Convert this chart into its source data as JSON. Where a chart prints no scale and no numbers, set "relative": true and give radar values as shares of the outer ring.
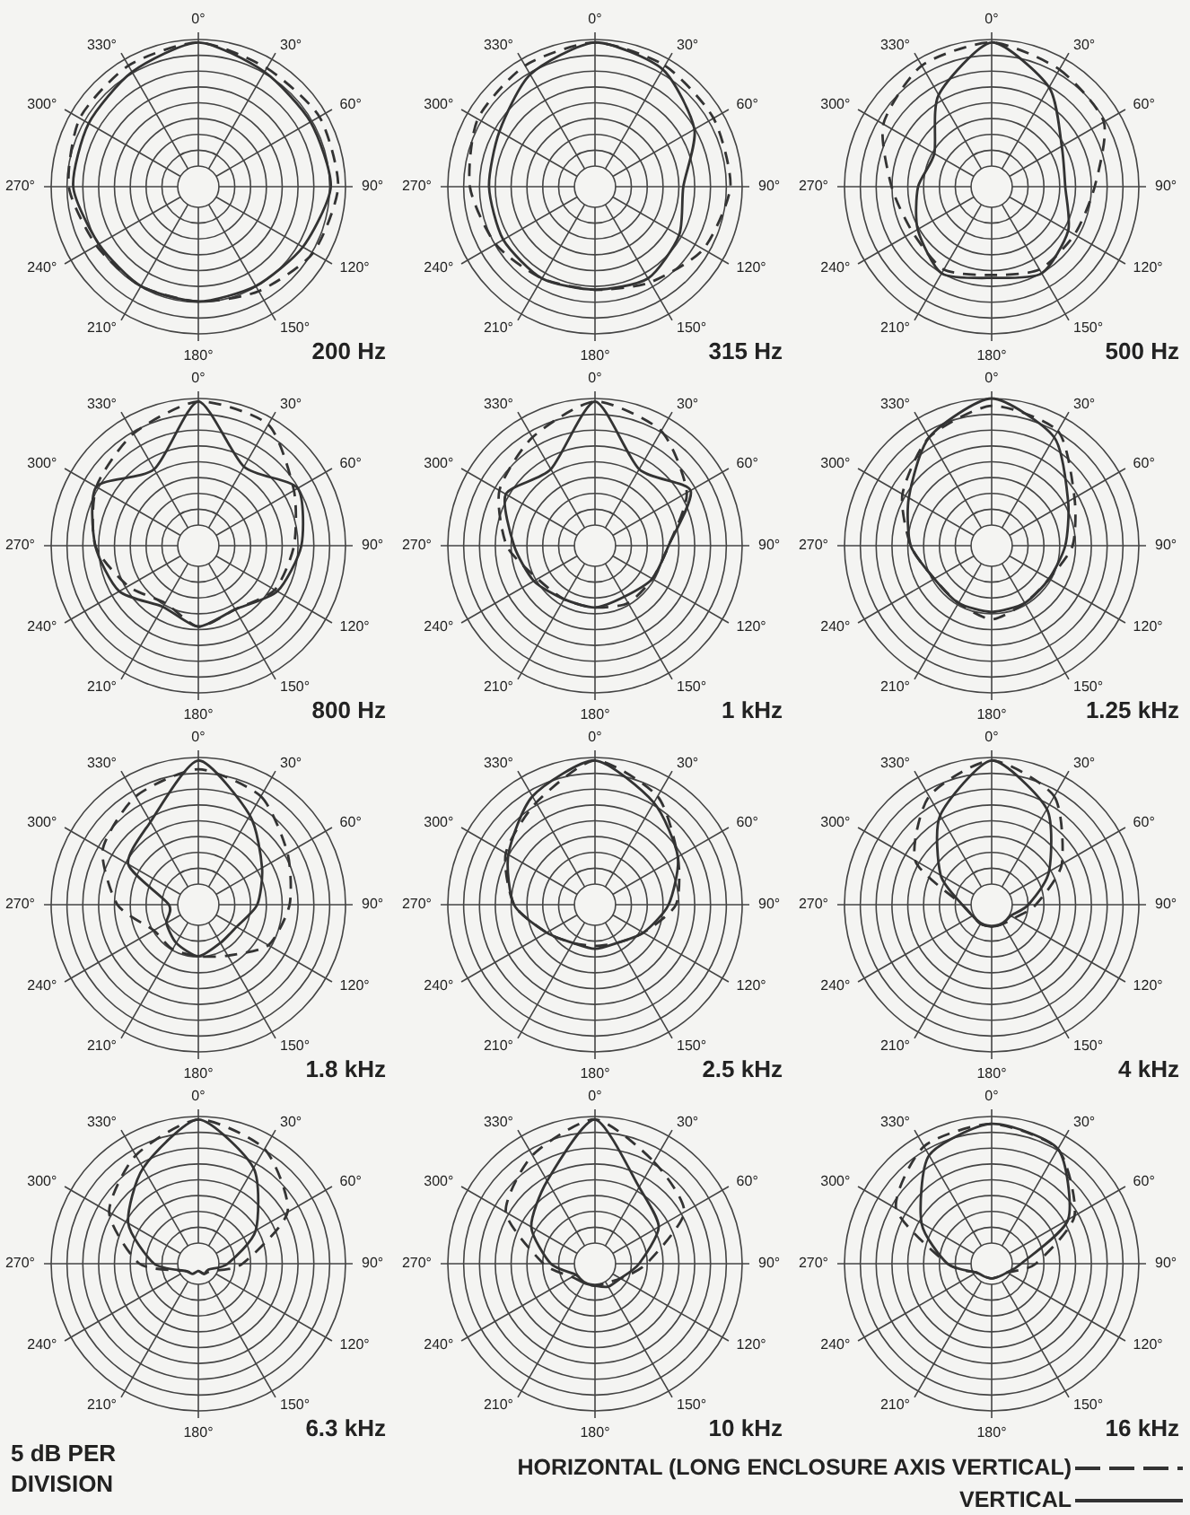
{
  "chart_data": [
    {
      "type": "radar",
      "title": "200 Hz",
      "relative": true,
      "grid": true,
      "categories": [
        "0°",
        "30°",
        "60°",
        "90°",
        "120°",
        "150°",
        "180°",
        "210°",
        "240°",
        "270°",
        "300°",
        "330°"
      ],
      "series": [
        {
          "color": "#333333",
          "line_style": "dashed",
          "values": [
            0.98,
            0.93,
            0.95,
            0.95,
            0.9,
            0.82,
            0.78,
            0.78,
            0.8,
            0.88,
            0.93,
            0.95
          ]
        },
        {
          "color": "#333333",
          "line_style": "solid",
          "values": [
            0.98,
            0.9,
            0.88,
            0.9,
            0.82,
            0.78,
            0.78,
            0.78,
            0.78,
            0.85,
            0.86,
            0.9
          ]
        }
      ]
    },
    {
      "type": "radar",
      "title": "315 Hz",
      "relative": true,
      "grid": true,
      "categories": [
        "0°",
        "30°",
        "60°",
        "90°",
        "120°",
        "150°",
        "180°",
        "210°",
        "240°",
        "270°",
        "300°",
        "330°"
      ],
      "series": [
        {
          "color": "#333333",
          "line_style": "dashed",
          "values": [
            0.98,
            0.95,
            0.93,
            0.92,
            0.85,
            0.75,
            0.7,
            0.72,
            0.78,
            0.85,
            0.92,
            0.95
          ]
        },
        {
          "color": "#333333",
          "line_style": "solid",
          "values": [
            0.98,
            0.92,
            0.78,
            0.6,
            0.66,
            0.72,
            0.7,
            0.72,
            0.72,
            0.72,
            0.75,
            0.88
          ]
        }
      ]
    },
    {
      "type": "radar",
      "title": "500 Hz",
      "relative": true,
      "grid": true,
      "categories": [
        "0°",
        "30°",
        "60°",
        "90°",
        "120°",
        "150°",
        "180°",
        "210°",
        "240°",
        "270°",
        "300°",
        "330°"
      ],
      "series": [
        {
          "color": "#333333",
          "line_style": "dashed",
          "values": [
            0.98,
            0.92,
            0.88,
            0.7,
            0.65,
            0.65,
            0.6,
            0.65,
            0.62,
            0.68,
            0.85,
            0.95
          ]
        },
        {
          "color": "#333333",
          "line_style": "solid",
          "values": [
            0.98,
            0.78,
            0.55,
            0.5,
            0.6,
            0.68,
            0.62,
            0.68,
            0.58,
            0.5,
            0.45,
            0.72
          ]
        }
      ]
    },
    {
      "type": "radar",
      "title": "800 Hz",
      "relative": true,
      "grid": true,
      "categories": [
        "0°",
        "30°",
        "60°",
        "90°",
        "120°",
        "150°",
        "180°",
        "210°",
        "240°",
        "270°",
        "300°",
        "330°"
      ],
      "series": [
        {
          "color": "#333333",
          "line_style": "dashed",
          "values": [
            0.98,
            0.95,
            0.75,
            0.65,
            0.6,
            0.5,
            0.55,
            0.45,
            0.55,
            0.7,
            0.8,
            0.88
          ]
        },
        {
          "color": "#333333",
          "line_style": "solid",
          "values": [
            0.98,
            0.62,
            0.78,
            0.7,
            0.62,
            0.5,
            0.55,
            0.48,
            0.62,
            0.7,
            0.8,
            0.6
          ]
        }
      ]
    },
    {
      "type": "radar",
      "title": "1 kHz",
      "relative": true,
      "grid": true,
      "categories": [
        "0°",
        "30°",
        "60°",
        "90°",
        "120°",
        "150°",
        "180°",
        "210°",
        "240°",
        "270°",
        "300°",
        "330°"
      ],
      "series": [
        {
          "color": "#333333",
          "line_style": "dashed",
          "values": [
            0.98,
            0.9,
            0.72,
            0.5,
            0.45,
            0.45,
            0.42,
            0.42,
            0.45,
            0.6,
            0.75,
            0.85
          ]
        },
        {
          "color": "#333333",
          "line_style": "solid",
          "values": [
            0.98,
            0.6,
            0.75,
            0.5,
            0.45,
            0.4,
            0.42,
            0.42,
            0.48,
            0.55,
            0.7,
            0.6
          ]
        }
      ]
    },
    {
      "type": "radar",
      "title": "1.25 kHz",
      "relative": true,
      "grid": true,
      "categories": [
        "0°",
        "30°",
        "60°",
        "90°",
        "120°",
        "150°",
        "180°",
        "210°",
        "240°",
        "270°",
        "300°",
        "330°"
      ],
      "series": [
        {
          "color": "#333333",
          "line_style": "dashed",
          "values": [
            0.95,
            0.9,
            0.65,
            0.55,
            0.45,
            0.45,
            0.5,
            0.45,
            0.45,
            0.55,
            0.7,
            0.85
          ]
        },
        {
          "color": "#333333",
          "line_style": "solid",
          "values": [
            1,
            0.85,
            0.6,
            0.5,
            0.45,
            0.45,
            0.45,
            0.45,
            0.45,
            0.55,
            0.65,
            0.85
          ]
        }
      ]
    },
    {
      "type": "radar",
      "title": "1.8 kHz",
      "relative": true,
      "grid": true,
      "categories": [
        "0°",
        "30°",
        "60°",
        "90°",
        "120°",
        "150°",
        "180°",
        "210°",
        "240°",
        "270°",
        "300°",
        "330°"
      ],
      "series": [
        {
          "color": "#333333",
          "line_style": "dashed",
          "values": [
            0.92,
            0.85,
            0.7,
            0.62,
            0.55,
            0.4,
            0.35,
            0.35,
            0.35,
            0.55,
            0.75,
            0.85
          ]
        },
        {
          "color": "#333333",
          "line_style": "solid",
          "values": [
            0.98,
            0.7,
            0.5,
            0.4,
            0.3,
            0.3,
            0.35,
            0.3,
            0.25,
            0.2,
            0.55,
            0.65
          ]
        }
      ]
    },
    {
      "type": "radar",
      "title": "2.5 kHz",
      "relative": true,
      "grid": true,
      "categories": [
        "0°",
        "30°",
        "60°",
        "90°",
        "120°",
        "150°",
        "180°",
        "210°",
        "240°",
        "270°",
        "300°",
        "330°"
      ],
      "series": [
        {
          "color": "#333333",
          "line_style": "dashed",
          "values": [
            0.98,
            0.85,
            0.65,
            0.55,
            0.38,
            0.3,
            0.28,
            0.3,
            0.38,
            0.55,
            0.7,
            0.8
          ]
        },
        {
          "color": "#333333",
          "line_style": "solid",
          "values": [
            0.98,
            0.8,
            0.65,
            0.5,
            0.38,
            0.3,
            0.3,
            0.3,
            0.38,
            0.55,
            0.68,
            0.85
          ]
        }
      ]
    },
    {
      "type": "radar",
      "title": "4 kHz",
      "relative": true,
      "grid": true,
      "categories": [
        "0°",
        "30°",
        "60°",
        "90°",
        "120°",
        "150°",
        "180°",
        "210°",
        "240°",
        "270°",
        "300°",
        "330°"
      ],
      "series": [
        {
          "color": "#333333",
          "line_style": "dashed",
          "values": [
            0.98,
            0.85,
            0.55,
            0.3,
            0.18,
            0.15,
            0.15,
            0.15,
            0.15,
            0.2,
            0.6,
            0.85
          ]
        },
        {
          "color": "#333333",
          "line_style": "solid",
          "values": [
            0.98,
            0.75,
            0.45,
            0.25,
            0.15,
            0.15,
            0.15,
            0.15,
            0.15,
            0.2,
            0.4,
            0.7
          ]
        }
      ]
    },
    {
      "type": "radar",
      "title": "6.3 kHz",
      "relative": true,
      "grid": true,
      "annotations": [
        "5 dB PER DIVISION"
      ],
      "categories": [
        "0°",
        "30°",
        "60°",
        "90°",
        "120°",
        "150°",
        "180°",
        "210°",
        "240°",
        "270°",
        "300°",
        "330°"
      ],
      "series": [
        {
          "color": "#333333",
          "line_style": "dashed",
          "values": [
            0.98,
            0.9,
            0.7,
            0.3,
            0.1,
            0.08,
            0.05,
            0.08,
            0.1,
            0.4,
            0.7,
            0.85
          ]
        },
        {
          "color": "#333333",
          "line_style": "solid",
          "values": [
            0.98,
            0.75,
            0.45,
            0.2,
            0.08,
            0.08,
            0.05,
            0.08,
            0.1,
            0.3,
            0.55,
            0.75
          ]
        }
      ]
    },
    {
      "type": "radar",
      "title": "10 kHz",
      "relative": true,
      "grid": true,
      "categories": [
        "0°",
        "30°",
        "60°",
        "90°",
        "120°",
        "150°",
        "180°",
        "210°",
        "240°",
        "270°",
        "300°",
        "330°"
      ],
      "series": [
        {
          "color": "#333333",
          "line_style": "dashed",
          "values": [
            0.98,
            0.8,
            0.7,
            0.35,
            0.2,
            0.15,
            0.15,
            0.15,
            0.18,
            0.35,
            0.7,
            0.85
          ]
        },
        {
          "color": "#333333",
          "line_style": "solid",
          "values": [
            0.98,
            0.6,
            0.5,
            0.3,
            0.2,
            0.18,
            0.15,
            0.15,
            0.15,
            0.3,
            0.5,
            0.65
          ]
        }
      ]
    },
    {
      "type": "radar",
      "title": "16 kHz",
      "relative": true,
      "grid": true,
      "legend": "bottom",
      "categories": [
        "0°",
        "30°",
        "60°",
        "90°",
        "120°",
        "150°",
        "180°",
        "210°",
        "240°",
        "270°",
        "300°",
        "330°"
      ],
      "series": [
        {
          "name": "HORIZONTAL (LONG ENCLOSURE AXIS VERTICAL)",
          "color": "#333333",
          "line_style": "dashed",
          "values": [
            0.95,
            0.9,
            0.65,
            0.3,
            0.12,
            0.1,
            0.1,
            0.1,
            0.12,
            0.3,
            0.75,
            0.92
          ]
        },
        {
          "name": "VERTICAL",
          "color": "#333333",
          "line_style": "solid",
          "values": [
            0.95,
            0.9,
            0.6,
            0.2,
            0.12,
            0.1,
            0.1,
            0.1,
            0.12,
            0.3,
            0.55,
            0.85
          ]
        }
      ]
    }
  ]
}
